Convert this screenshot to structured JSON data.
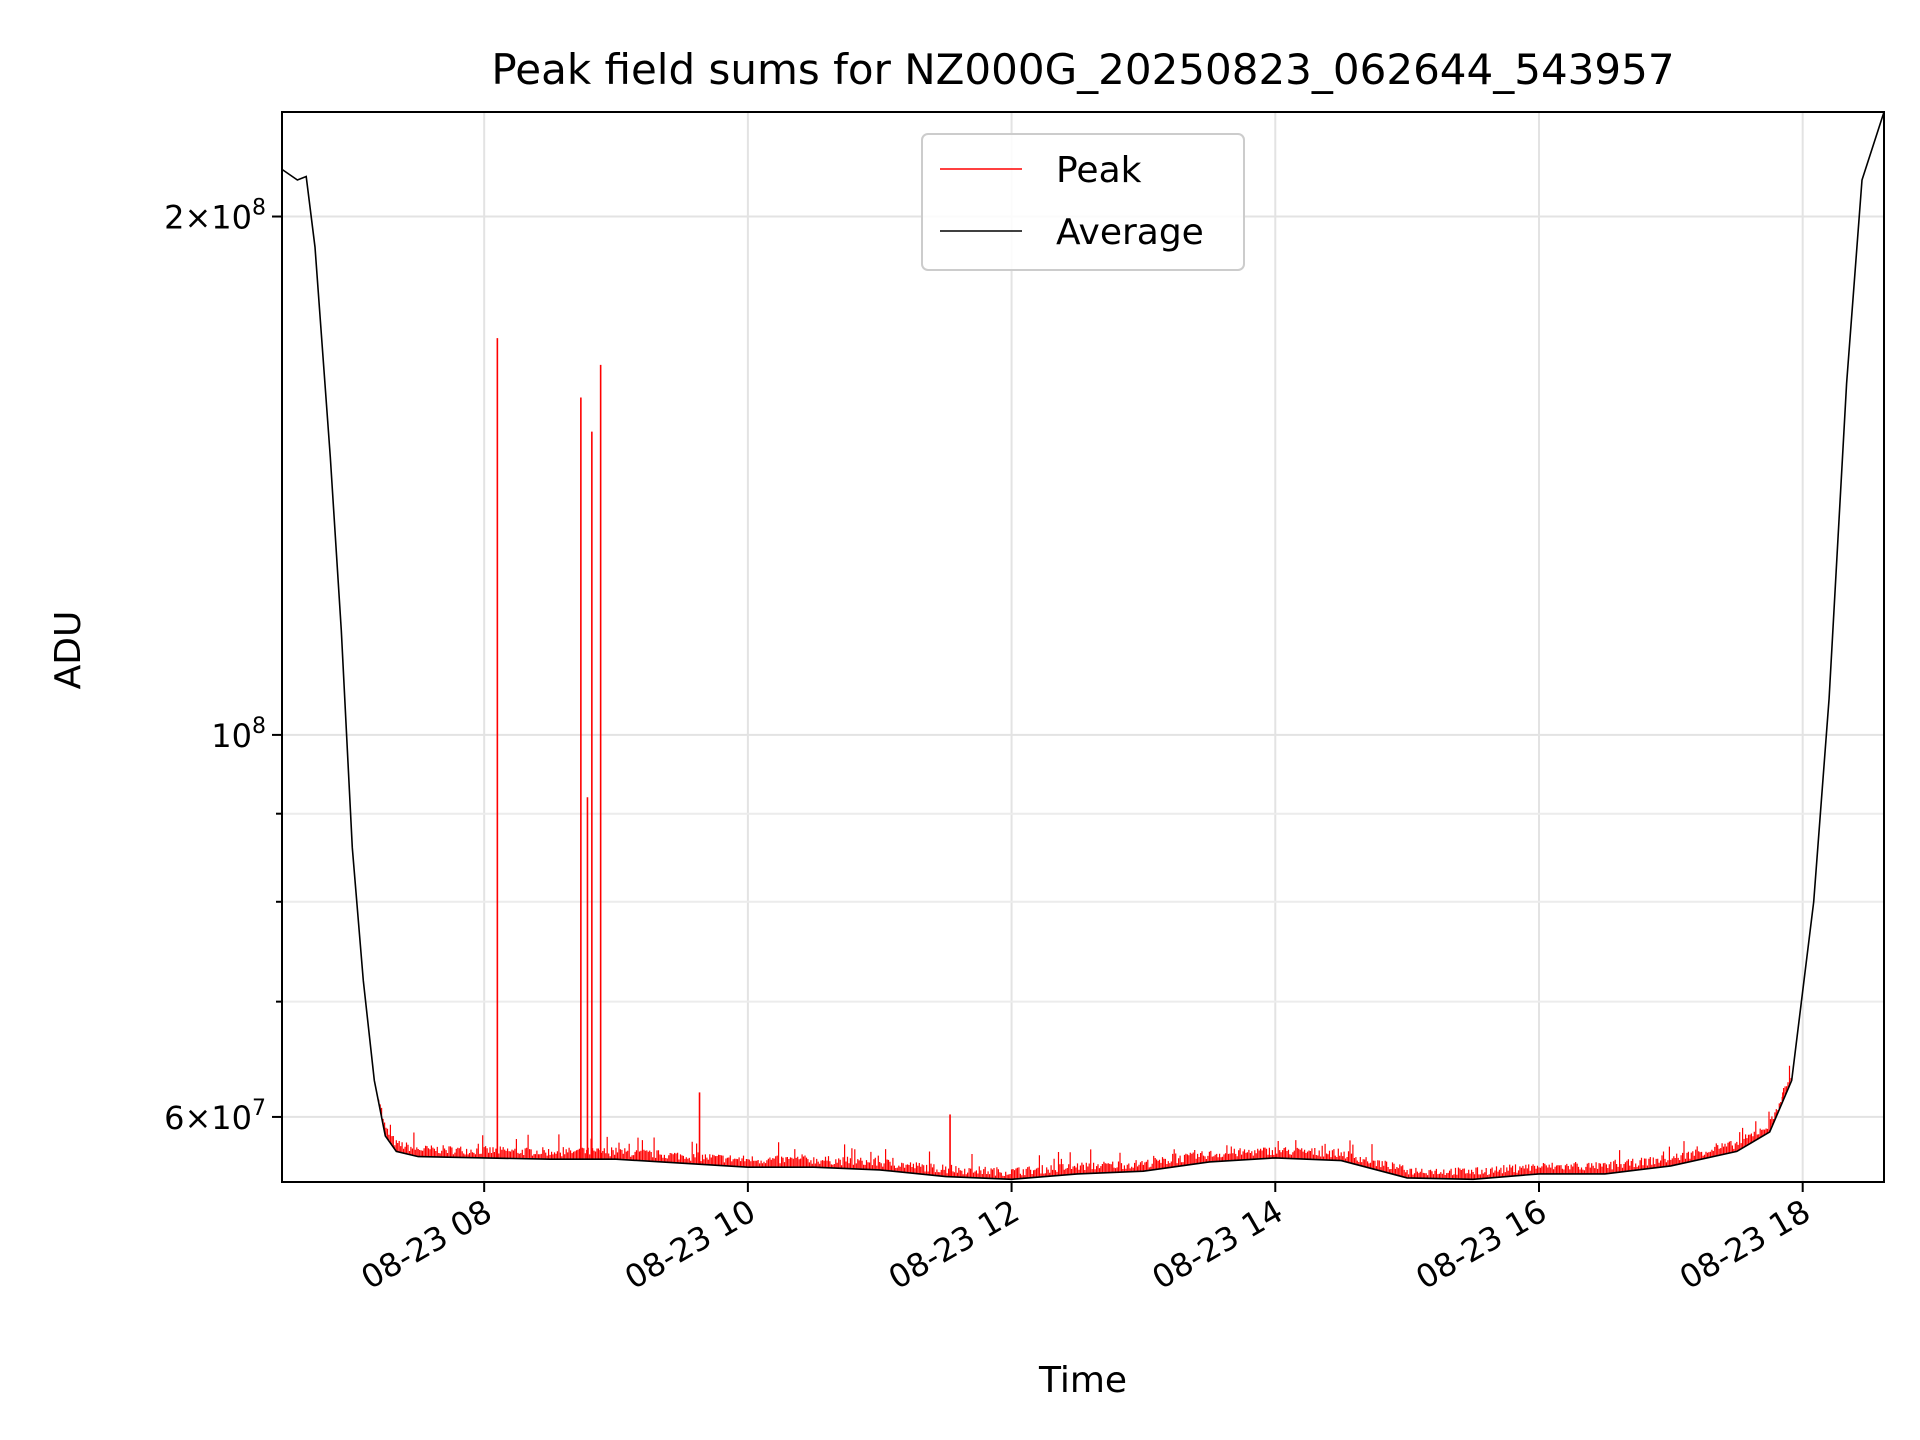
{
  "chart_data": {
    "type": "line",
    "title": "Peak field sums for NZ000G_20250823_062644_543957",
    "xlabel": "Time",
    "ylabel": "ADU",
    "y_scale": "log",
    "ylim": [
      55000000,
      230000000
    ],
    "xlim": [
      "2025-08-23 06:28",
      "2025-08-23 18:37"
    ],
    "x_ticks": [
      {
        "t": "2025-08-23 08:00",
        "label": "08-23 08"
      },
      {
        "t": "2025-08-23 10:00",
        "label": "08-23 10"
      },
      {
        "t": "2025-08-23 12:00",
        "label": "08-23 12"
      },
      {
        "t": "2025-08-23 14:00",
        "label": "08-23 14"
      },
      {
        "t": "2025-08-23 16:00",
        "label": "08-23 16"
      },
      {
        "t": "2025-08-23 18:00",
        "label": "08-23 18"
      }
    ],
    "y_major_ticks": [
      {
        "value": 60000000,
        "mantissa": "6",
        "exp": "7"
      },
      {
        "value": 100000000,
        "mantissa": "",
        "exp": "8"
      },
      {
        "value": 200000000,
        "mantissa": "2",
        "exp": "8"
      }
    ],
    "y_minor_ticks": [
      70000000,
      80000000,
      90000000
    ],
    "grid": true,
    "legend_position": "upper center",
    "series": [
      {
        "name": "Average",
        "color": "#000000",
        "points": [
          [
            "2025-08-23 06:28",
            213000000
          ],
          [
            "2025-08-23 06:35",
            210000000
          ],
          [
            "2025-08-23 06:39",
            211000000
          ],
          [
            "2025-08-23 06:43",
            192000000
          ],
          [
            "2025-08-23 06:50",
            145000000
          ],
          [
            "2025-08-23 06:55",
            115000000
          ],
          [
            "2025-08-23 07:00",
            86000000
          ],
          [
            "2025-08-23 07:05",
            72000000
          ],
          [
            "2025-08-23 07:10",
            63000000
          ],
          [
            "2025-08-23 07:15",
            58500000
          ],
          [
            "2025-08-23 07:20",
            57300000
          ],
          [
            "2025-08-23 07:30",
            56900000
          ],
          [
            "2025-08-23 08:00",
            56800000
          ],
          [
            "2025-08-23 08:30",
            56700000
          ],
          [
            "2025-08-23 09:00",
            56700000
          ],
          [
            "2025-08-23 09:30",
            56400000
          ],
          [
            "2025-08-23 10:00",
            56100000
          ],
          [
            "2025-08-23 10:30",
            56100000
          ],
          [
            "2025-08-23 11:00",
            55900000
          ],
          [
            "2025-08-23 11:30",
            55400000
          ],
          [
            "2025-08-23 12:00",
            55200000
          ],
          [
            "2025-08-23 12:30",
            55600000
          ],
          [
            "2025-08-23 13:00",
            55800000
          ],
          [
            "2025-08-23 13:30",
            56500000
          ],
          [
            "2025-08-23 14:00",
            56800000
          ],
          [
            "2025-08-23 14:30",
            56600000
          ],
          [
            "2025-08-23 15:00",
            55300000
          ],
          [
            "2025-08-23 15:30",
            55200000
          ],
          [
            "2025-08-23 16:00",
            55600000
          ],
          [
            "2025-08-23 16:30",
            55600000
          ],
          [
            "2025-08-23 17:00",
            56200000
          ],
          [
            "2025-08-23 17:30",
            57300000
          ],
          [
            "2025-08-23 17:45",
            58800000
          ],
          [
            "2025-08-23 17:55",
            63000000
          ],
          [
            "2025-08-23 18:05",
            80000000
          ],
          [
            "2025-08-23 18:12",
            105000000
          ],
          [
            "2025-08-23 18:20",
            160000000
          ],
          [
            "2025-08-23 18:27",
            210000000
          ],
          [
            "2025-08-23 18:37",
            230000000
          ]
        ]
      },
      {
        "name": "Peak",
        "color": "#ff0000",
        "spikes": [
          [
            "2025-08-23 08:06",
            170000000
          ],
          [
            "2025-08-23 08:44",
            157000000
          ],
          [
            "2025-08-23 08:47",
            92000000
          ],
          [
            "2025-08-23 08:49",
            150000000
          ],
          [
            "2025-08-23 08:53",
            164000000
          ],
          [
            "2025-08-23 09:38",
            62000000
          ],
          [
            "2025-08-23 11:32",
            60200000
          ],
          [
            "2025-08-23 17:51",
            62000000
          ]
        ]
      }
    ]
  }
}
